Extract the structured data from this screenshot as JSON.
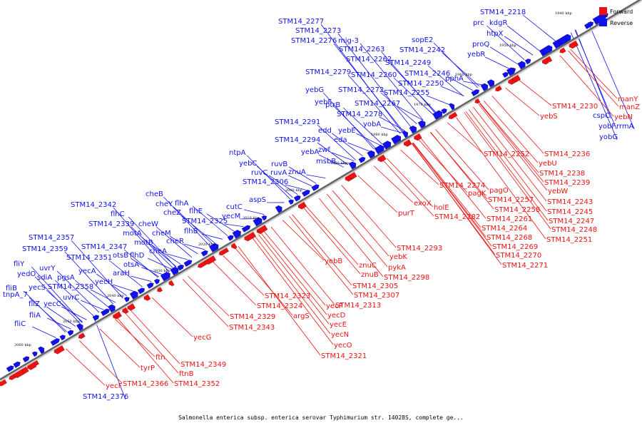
{
  "caption": "Salmonella enterica subsp. enterica serovar Typhimurium str. 14028S, complete ge...",
  "legend": [
    {
      "label": "Forward",
      "color": "#ee1111"
    },
    {
      "label": "Reverse",
      "color": "#1111ee"
    }
  ],
  "colors": {
    "forward": "#ee1111",
    "reverse": "#1111ee",
    "axis": "#666666"
  },
  "ticks": [
    "1940 kbp",
    "1950 kbp",
    "1960 kbp",
    "1970 kbp",
    "1980 kbp",
    "1990 kbp",
    "2000 kbp",
    "2010 kbp",
    "2020 kbp",
    "2030 kbp",
    "2040 kbp",
    "2050 kbp",
    "2060 kbp"
  ],
  "reverse_labels": [
    "STM14_2218",
    "kdgR",
    "prc",
    "htpX",
    "proQ",
    "yebR",
    "pphA",
    "sopE2",
    "STM14_2242",
    "STM14_2249",
    "STM14_2246",
    "STM14_2250",
    "STM14_2255",
    "STM14_2277",
    "STM14_2273",
    "STM14_2276",
    "mig-3",
    "STM14_2263",
    "STM14_2262",
    "STM14_2279",
    "STM14_2260",
    "yebG",
    "STM14_2272",
    "yebF",
    "ptrB",
    "STM14_2267",
    "STM14_2278",
    "yobA",
    "STM14_2291",
    "edd",
    "yebE",
    "STM14_2294",
    "eda",
    "zwf",
    "yebA",
    "msbB",
    "ntpA",
    "yebC",
    "ruvB",
    "ruvC",
    "ruvA",
    "znuA",
    "STM14_2306",
    "aspS",
    "cheB",
    "cheY",
    "flhA",
    "cheZ",
    "flhE",
    "STM14_2342",
    "flhC",
    "STM14_2339",
    "cheW",
    "STM14_2325",
    "flhB",
    "cutC",
    "yecM",
    "motA",
    "cheM",
    "cheR",
    "motB",
    "STM14_2357",
    "STM14_2347",
    "STM14_2359",
    "otsB",
    "flhD",
    "cheA",
    "STM14_2351",
    "otsA",
    "fliY",
    "araH",
    "yecA",
    "yedO",
    "uvrY",
    "sdiA",
    "pgsA",
    "yecH",
    "fliB",
    "yecS",
    "STM14_2358",
    "tnpA_7",
    "fliZ",
    "yecC",
    "uvrC",
    "fliA",
    "fliC",
    "STM14_2376",
    "cspC",
    "yobF",
    "rrmA",
    "yobG"
  ],
  "forward_labels": [
    "manY",
    "manZ",
    "yebN",
    "STM14_2230",
    "yebS",
    "STM14_2236",
    "STM14_2252",
    "yebU",
    "STM14_2238",
    "STM14_2239",
    "yebW",
    "STM14_2243",
    "STM14_2245",
    "STM14_2247",
    "STM14_2248",
    "STM14_2251",
    "pagO",
    "STM14_2257",
    "STM14_2258",
    "STM14_2261",
    "STM14_2264",
    "STM14_2268",
    "STM14_2269",
    "STM14_2270",
    "STM14_2271",
    "STM14_2274",
    "pagK",
    "exoX",
    "holE",
    "STM14_2282",
    "purT",
    "STM14_2293",
    "yebK",
    "pykA",
    "STM14_2298",
    "znuC",
    "znuB",
    "yebB",
    "STM14_2305",
    "STM14_2307",
    "STM14_2313",
    "yecP",
    "yecD",
    "yecE",
    "yecN",
    "yecO",
    "STM14_2321",
    "STM14_2323",
    "STM14_2324",
    "argS",
    "STM14_2329",
    "STM14_2343",
    "yecG",
    "ftn",
    "tyrP",
    "ftnB",
    "STM14_2349",
    "STM14_2352",
    "STM14_2366",
    "yecF"
  ]
}
